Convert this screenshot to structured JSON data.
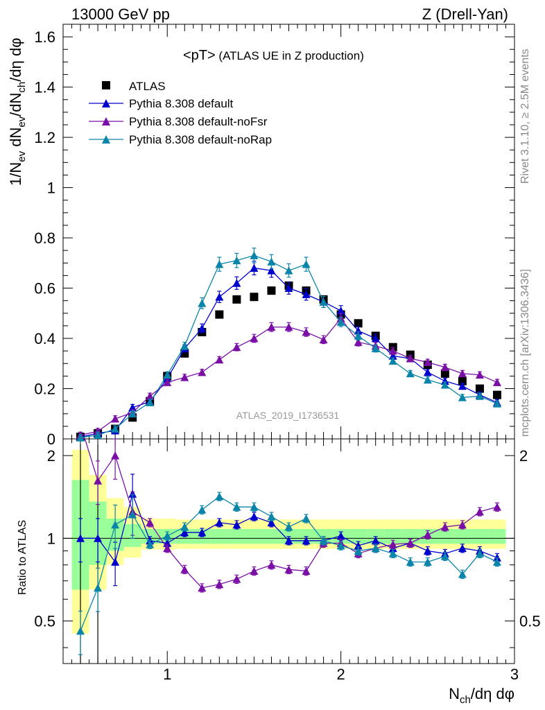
{
  "header": {
    "left": "13000 GeV pp",
    "right": "Z (Drell-Yan)"
  },
  "side_labels": {
    "rivet": "Rivet 3.1.10, ≥ 2.5M events",
    "mcplots": "mcplots.cern.ch [arXiv:1306.3436]"
  },
  "plot_title": {
    "main": "<pT>",
    "sub": " (ATLAS UE in Z production)"
  },
  "analysis_label": "ATLAS_2019_I1736531",
  "axis": {
    "ylabel_main": "1/N_ev dN_ev/dN_ch/dη dφ",
    "ylabel_ratio": "Ratio to ATLAS",
    "xlabel": "N_ch/dη dφ",
    "main_yticks": [
      "0",
      "0.2",
      "0.4",
      "0.6",
      "0.8",
      "1",
      "1.2",
      "1.4",
      "1.6"
    ],
    "ratio_yticks": [
      "0.5",
      "1",
      "2"
    ],
    "xticks": [
      "1",
      "2",
      "3"
    ]
  },
  "colors": {
    "atlas": "#000000",
    "default": "#0000cc",
    "noFsr": "#7a0fa6",
    "noRap": "#0a84a8",
    "band_inner": "#99ff99",
    "band_outer": "#ffff99"
  },
  "chart_data": {
    "type": "scatter",
    "xlim": [
      0.4,
      3.0
    ],
    "ylim_main": [
      0,
      1.65
    ],
    "ylim_ratio": [
      0.35,
      2.3
    ],
    "ratio_scale": "log",
    "legend_position": "top-left",
    "x": [
      0.5,
      0.6,
      0.7,
      0.8,
      0.9,
      1.0,
      1.1,
      1.2,
      1.3,
      1.4,
      1.5,
      1.6,
      1.7,
      1.8,
      1.9,
      2.0,
      2.1,
      2.2,
      2.3,
      2.4,
      2.5,
      2.6,
      2.7,
      2.8,
      2.9
    ],
    "series": [
      {
        "name": "ATLAS",
        "style": "data",
        "values": [
          0.008,
          0.022,
          0.04,
          0.085,
          0.15,
          0.25,
          0.34,
          0.425,
          0.495,
          0.555,
          0.565,
          0.59,
          0.61,
          0.59,
          0.555,
          0.495,
          0.46,
          0.41,
          0.365,
          0.335,
          0.295,
          0.26,
          0.23,
          0.2,
          0.175
        ],
        "ratio": [
          1.0,
          1.0,
          1.0,
          1.0,
          1.0,
          1.0,
          1.0,
          1.0,
          1.0,
          1.0,
          1.0,
          1.0,
          1.0,
          1.0,
          1.0,
          1.0,
          1.0,
          1.0,
          1.0,
          1.0,
          1.0,
          1.0,
          1.0,
          1.0,
          1.0
        ]
      },
      {
        "name": "Pythia 8.308 default",
        "style": "mc",
        "values": [
          0.008,
          0.022,
          0.033,
          0.125,
          0.148,
          0.24,
          0.36,
          0.44,
          0.565,
          0.62,
          0.68,
          0.67,
          0.6,
          0.575,
          0.545,
          0.51,
          0.43,
          0.4,
          0.33,
          0.32,
          0.265,
          0.23,
          0.21,
          0.175,
          0.145
        ],
        "ratio": [
          1.0,
          1.0,
          0.82,
          1.45,
          0.98,
          0.96,
          1.05,
          1.05,
          1.14,
          1.12,
          1.2,
          1.14,
          0.98,
          0.98,
          0.98,
          1.02,
          0.94,
          0.98,
          0.92,
          0.96,
          0.9,
          0.88,
          0.92,
          0.9,
          0.85
        ]
      },
      {
        "name": "Pythia 8.308 default-noFsr",
        "style": "mc",
        "values": [
          0.015,
          0.03,
          0.08,
          0.105,
          0.17,
          0.225,
          0.245,
          0.265,
          0.315,
          0.365,
          0.4,
          0.445,
          0.445,
          0.425,
          0.395,
          0.48,
          0.385,
          0.37,
          0.35,
          0.32,
          0.305,
          0.285,
          0.26,
          0.255,
          0.225
        ],
        "ratio": [
          2.6,
          1.62,
          2.0,
          1.25,
          1.14,
          0.92,
          0.77,
          0.66,
          0.68,
          0.71,
          0.76,
          0.8,
          0.77,
          0.76,
          0.96,
          0.96,
          0.88,
          0.92,
          0.95,
          0.96,
          1.03,
          1.1,
          1.12,
          1.25,
          1.3
        ]
      },
      {
        "name": "Pythia 8.308 default-noRap",
        "style": "mc",
        "values": [
          0.005,
          0.015,
          0.04,
          0.1,
          0.145,
          0.255,
          0.37,
          0.54,
          0.695,
          0.71,
          0.73,
          0.705,
          0.67,
          0.695,
          0.545,
          0.465,
          0.41,
          0.36,
          0.31,
          0.26,
          0.235,
          0.215,
          0.165,
          0.17,
          0.14
        ],
        "ratio": [
          0.46,
          0.66,
          1.12,
          1.22,
          0.95,
          1.02,
          1.1,
          1.27,
          1.42,
          1.3,
          1.3,
          1.2,
          1.1,
          1.18,
          0.98,
          0.94,
          0.9,
          0.92,
          0.88,
          0.82,
          0.82,
          0.86,
          0.74,
          0.88,
          0.82
        ]
      }
    ]
  }
}
